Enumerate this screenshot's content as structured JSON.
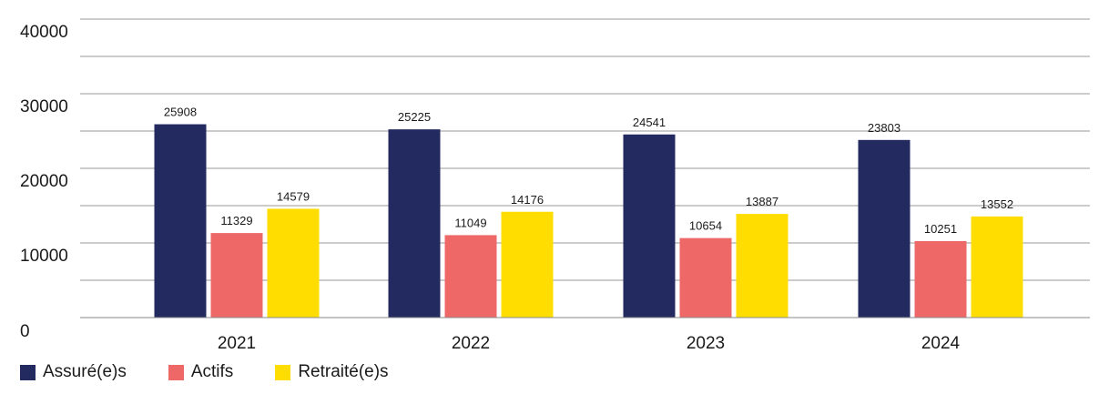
{
  "chart_data": {
    "type": "bar",
    "categories": [
      "2021",
      "2022",
      "2023",
      "2024"
    ],
    "series": [
      {
        "name": "Assuré(e)s",
        "color": "#222a60",
        "values": [
          25908,
          25225,
          24541,
          23803
        ]
      },
      {
        "name": "Actifs",
        "color": "#ef6868",
        "values": [
          11329,
          11049,
          10654,
          10251
        ]
      },
      {
        "name": "Retraité(e)s",
        "color": "#ffdd00",
        "values": [
          14579,
          14176,
          13887,
          13552
        ]
      }
    ],
    "y_ticks": [
      "0",
      "10000",
      "20000",
      "30000",
      "40000"
    ],
    "ylim": [
      0,
      40000
    ],
    "grid": true,
    "legend_position": "bottom-left",
    "title": "",
    "xlabel": "",
    "ylabel": ""
  }
}
